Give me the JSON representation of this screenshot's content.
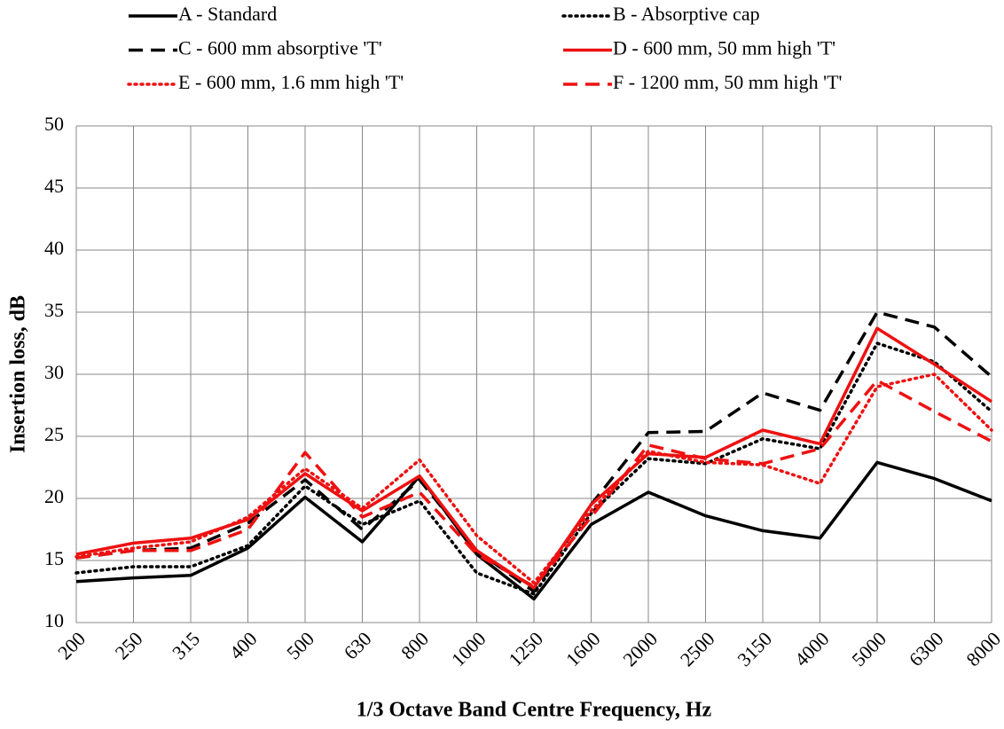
{
  "chart_data": {
    "type": "line",
    "x_label": "1/3 Octave Band Centre Frequency, Hz",
    "y_label": "Insertion loss, dB",
    "categories": [
      "200",
      "250",
      "315",
      "400",
      "500",
      "630",
      "800",
      "1000",
      "1250",
      "1600",
      "2000",
      "2500",
      "3150",
      "4000",
      "5000",
      "6300",
      "8000"
    ],
    "series": [
      {
        "name": "A - Standard",
        "color": "#000000",
        "dash": "solid",
        "values": [
          13.3,
          13.6,
          13.8,
          16.0,
          20.1,
          16.5,
          21.8,
          15.5,
          11.9,
          17.9,
          20.5,
          18.6,
          17.4,
          16.8,
          22.9,
          21.6,
          19.8
        ]
      },
      {
        "name": "B - Absorptive cap",
        "color": "#000000",
        "dash": "dot",
        "values": [
          14.0,
          14.5,
          14.5,
          16.2,
          21.0,
          17.9,
          19.8,
          14.0,
          12.3,
          18.8,
          23.2,
          22.8,
          24.8,
          24.0,
          32.5,
          31.0,
          27.0
        ]
      },
      {
        "name": "C - 600 mm absorptive 'T'",
        "color": "#000000",
        "dash": "dash",
        "values": [
          15.2,
          15.8,
          16.0,
          18.0,
          21.5,
          17.5,
          21.5,
          15.8,
          12.5,
          19.5,
          25.3,
          25.4,
          28.5,
          27.1,
          35.0,
          33.8,
          29.8
        ]
      },
      {
        "name": "D - 600 mm, 50 mm high 'T'",
        "color": "#ee1111",
        "dash": "solid",
        "values": [
          15.5,
          16.4,
          16.8,
          18.3,
          22.0,
          19.0,
          21.8,
          15.8,
          12.8,
          19.5,
          23.6,
          23.3,
          25.5,
          24.4,
          33.7,
          30.8,
          27.8
        ]
      },
      {
        "name": "E - 600 mm, 1.6 mm high 'T'",
        "color": "#ee1111",
        "dash": "dot",
        "values": [
          15.3,
          16.0,
          16.5,
          18.5,
          22.4,
          19.2,
          23.1,
          17.0,
          13.2,
          19.0,
          23.8,
          22.9,
          22.7,
          21.2,
          29.0,
          30.0,
          25.5
        ]
      },
      {
        "name": "F - 1200 mm, 50 mm high 'T'",
        "color": "#ee1111",
        "dash": "dash",
        "values": [
          15.2,
          15.8,
          15.8,
          17.5,
          23.7,
          18.5,
          20.5,
          15.5,
          12.9,
          18.5,
          24.3,
          23.2,
          22.8,
          24.0,
          29.5,
          27.0,
          24.6
        ]
      }
    ],
    "ylim": [
      10,
      50
    ],
    "yticks": [
      10,
      15,
      20,
      25,
      30,
      35,
      40,
      45,
      50
    ],
    "grid": true,
    "legend": "top"
  }
}
